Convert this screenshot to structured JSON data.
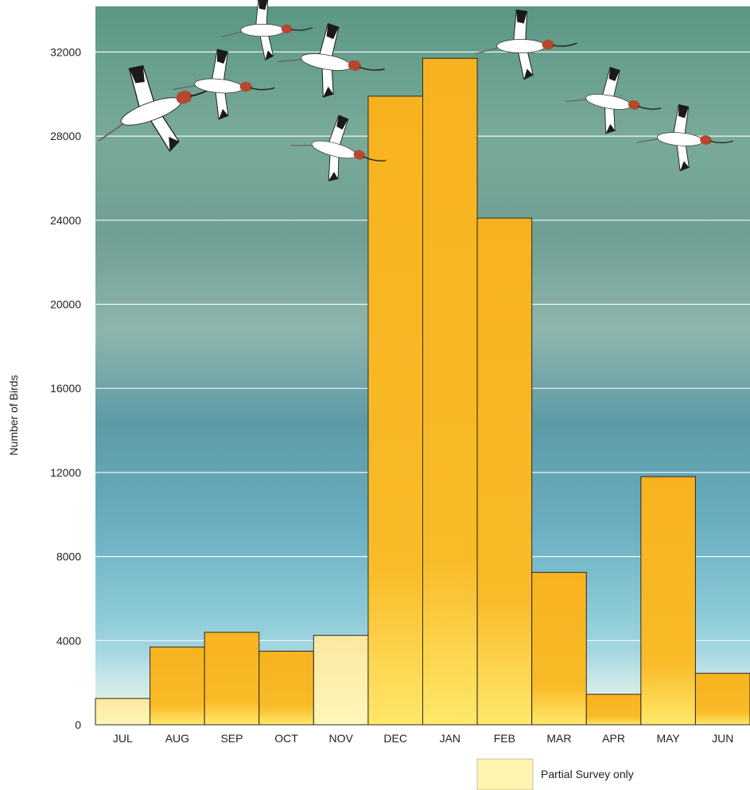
{
  "chart_data": {
    "type": "bar",
    "title": "",
    "xlabel": "",
    "ylabel": "Number of Birds",
    "ylim": [
      0,
      34000
    ],
    "yticks": [
      0,
      4000,
      8000,
      12000,
      16000,
      20000,
      24000,
      28000,
      32000
    ],
    "categories": [
      "JUL",
      "AUG",
      "SEP",
      "OCT",
      "NOV",
      "DEC",
      "JAN",
      "FEB",
      "MAR",
      "APR",
      "MAY",
      "JUN"
    ],
    "values": [
      1250,
      3700,
      4400,
      3500,
      4250,
      29900,
      31700,
      24100,
      7250,
      1450,
      11800,
      2450
    ],
    "partial_survey": [
      true,
      false,
      false,
      false,
      true,
      false,
      false,
      false,
      false,
      false,
      false,
      false
    ],
    "grid": true,
    "legend": {
      "position": "bottom-right",
      "entries": [
        {
          "label": "Partial Survey only",
          "color": "#fff3b0"
        }
      ]
    },
    "colors": {
      "full_survey": "#f9b824",
      "partial_survey": "#fff3b0",
      "grid": "#ffffff",
      "background_top": "#5f9a86",
      "background_bottom": "#cfeaf0"
    }
  },
  "decoration": {
    "icon": "flying-avocet-bird-icon",
    "count": 9
  }
}
